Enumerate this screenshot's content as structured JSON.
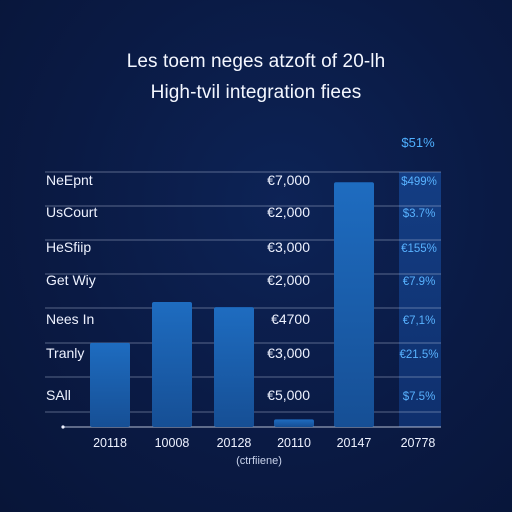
{
  "chart_data": {
    "type": "bar",
    "title": "Les toem neges atzoft of 20-lh",
    "subtitle": "High-tvil integration fiees",
    "column_header": "$51%",
    "xlabel": "(ctrfiiene)",
    "ylim": [
      0,
      100
    ],
    "grid": true,
    "categories": [
      "20118",
      "10008",
      "20128",
      "20110",
      "20147",
      "20778"
    ],
    "values": [
      33,
      49,
      47,
      3,
      96,
      0
    ],
    "rows": [
      {
        "label": "NeEpnt",
        "value": "€7,000",
        "pct": "$499%"
      },
      {
        "label": "UsCourt",
        "value": "€2,000",
        "pct": "$3.7%"
      },
      {
        "label": "HeSfiip",
        "value": "€3,000",
        "pct": "€155%"
      },
      {
        "label": "Get Wiy",
        "value": "€2,000",
        "pct": "€7.9%"
      },
      {
        "label": "Nees In",
        "value": "€4700",
        "pct": "€7,1%"
      },
      {
        "label": "Tranly",
        "value": "€3,000",
        "pct": "€21.5%"
      },
      {
        "label": "SAll",
        "value": "€5,000",
        "pct": "$7.5%"
      }
    ],
    "colors": {
      "bar": "#1b64b3",
      "highlight_column": "#123f85",
      "pct_text": "#58b2ff",
      "grid": "#cfd7ea"
    }
  }
}
